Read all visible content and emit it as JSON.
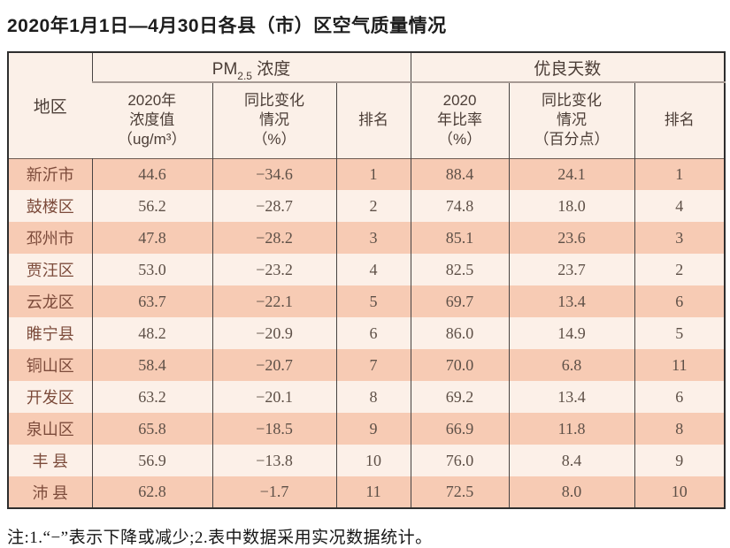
{
  "title": "2020年1月1日—4月30日各县（市）区空气质量情况",
  "table": {
    "region_header": "地区",
    "pm_group": {
      "prefix": "PM",
      "sub": "2.5",
      "suffix": " 浓度"
    },
    "good_group": "优良天数",
    "sub_headers": [
      "2020年\n浓度值\n（ug/m³）",
      "同比变化\n情况\n（%）",
      "排名",
      "2020\n年比率\n（%）",
      "同比变化\n情况\n（百分点）",
      "排名"
    ],
    "rows": [
      [
        "新沂市",
        "44.6",
        "−34.6",
        "1",
        "88.4",
        "24.1",
        "1"
      ],
      [
        "鼓楼区",
        "56.2",
        "−28.7",
        "2",
        "74.8",
        "18.0",
        "4"
      ],
      [
        "邳州市",
        "47.8",
        "−28.2",
        "3",
        "85.1",
        "23.6",
        "3"
      ],
      [
        "贾汪区",
        "53.0",
        "−23.2",
        "4",
        "82.5",
        "23.7",
        "2"
      ],
      [
        "云龙区",
        "63.7",
        "−22.1",
        "5",
        "69.7",
        "13.4",
        "6"
      ],
      [
        "睢宁县",
        "48.2",
        "−20.9",
        "6",
        "86.0",
        "14.9",
        "5"
      ],
      [
        "铜山区",
        "58.4",
        "−20.7",
        "7",
        "70.0",
        "6.8",
        "11"
      ],
      [
        "开发区",
        "63.2",
        "−20.1",
        "8",
        "69.2",
        "13.4",
        "6"
      ],
      [
        "泉山区",
        "65.8",
        "−18.5",
        "9",
        "66.9",
        "11.8",
        "8"
      ],
      [
        "丰 县",
        "56.9",
        "−13.8",
        "10",
        "76.0",
        "8.4",
        "9"
      ],
      [
        "沛 县",
        "62.8",
        "−1.7",
        "11",
        "72.5",
        "8.0",
        "10"
      ]
    ]
  },
  "note": "注:1.“−”表示下降或减少;2.表中数据采用实况数据统计。",
  "colors": {
    "row_odd": "#f7cbb4",
    "row_even": "#fcf0e8",
    "header_bg": "#fbf0e8",
    "region_text": "#7c4b3b",
    "value_text": "#5e5047",
    "table_border": "#2e2e2e"
  },
  "chart_data": {
    "type": "table",
    "title": "2020年1月1日—4月30日各县（市）区空气质量情况",
    "columns": [
      "地区",
      "PM2.5浓度 2020年浓度值（ug/m³）",
      "PM2.5浓度 同比变化情况（%）",
      "PM2.5浓度 排名",
      "优良天数 2020年比率（%）",
      "优良天数 同比变化情况（百分点）",
      "优良天数 排名"
    ],
    "rows": [
      [
        "新沂市",
        44.6,
        -34.6,
        1,
        88.4,
        24.1,
        1
      ],
      [
        "鼓楼区",
        56.2,
        -28.7,
        2,
        74.8,
        18.0,
        4
      ],
      [
        "邳州市",
        47.8,
        -28.2,
        3,
        85.1,
        23.6,
        3
      ],
      [
        "贾汪区",
        53.0,
        -23.2,
        4,
        82.5,
        23.7,
        2
      ],
      [
        "云龙区",
        63.7,
        -22.1,
        5,
        69.7,
        13.4,
        6
      ],
      [
        "睢宁县",
        48.2,
        -20.9,
        6,
        86.0,
        14.9,
        5
      ],
      [
        "铜山区",
        58.4,
        -20.7,
        7,
        70.0,
        6.8,
        11
      ],
      [
        "开发区",
        63.2,
        -20.1,
        8,
        69.2,
        13.4,
        6
      ],
      [
        "泉山区",
        65.8,
        -18.5,
        9,
        66.9,
        11.8,
        8
      ],
      [
        "丰县",
        56.9,
        -13.8,
        10,
        76.0,
        8.4,
        9
      ],
      [
        "沛县",
        62.8,
        -1.7,
        11,
        72.5,
        8.0,
        10
      ]
    ],
    "footnote": "注:1.“−”表示下降或减少;2.表中数据采用实况数据统计。"
  }
}
